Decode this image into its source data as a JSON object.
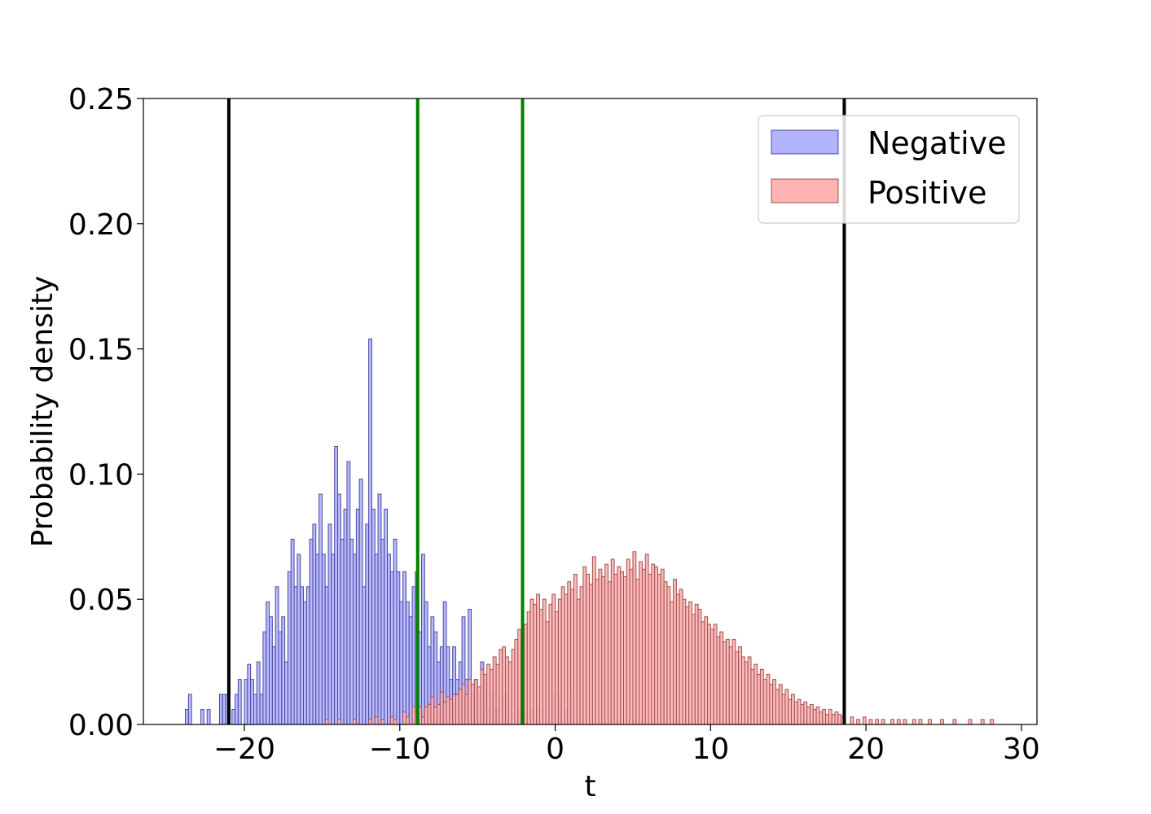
{
  "chart_data": {
    "type": "histogram",
    "xlabel": "t",
    "ylabel": "Probability density",
    "xlim": [
      -26.5,
      31
    ],
    "ylim": [
      0,
      0.25
    ],
    "xticks": [
      -20,
      -10,
      0,
      10,
      20,
      30
    ],
    "xtick_labels": [
      "−20",
      "−10",
      "0",
      "10",
      "20",
      "30"
    ],
    "yticks": [
      0,
      0.05,
      0.1,
      0.15,
      0.2,
      0.25
    ],
    "ytick_labels": [
      "0.00",
      "0.05",
      "0.10",
      "0.15",
      "0.20",
      "0.25"
    ],
    "bin_width": 0.2,
    "grid": false,
    "legend_position": "upper right",
    "series": [
      {
        "name": "Negative",
        "fill": "#b3b3ff",
        "edge": "#4a4aa0",
        "bins": [
          [
            -23.8,
            0.006
          ],
          [
            -23.6,
            0.012
          ],
          [
            -22.8,
            0.006
          ],
          [
            -22.4,
            0.006
          ],
          [
            -21.6,
            0.012
          ],
          [
            -21.4,
            0.012
          ],
          [
            -21.2,
            0.012
          ],
          [
            -20.8,
            0.006
          ],
          [
            -20.6,
            0.012
          ],
          [
            -20.4,
            0.018
          ],
          [
            -20.0,
            0.018
          ],
          [
            -19.8,
            0.024
          ],
          [
            -19.6,
            0.018
          ],
          [
            -19.4,
            0.012
          ],
          [
            -19.2,
            0.025
          ],
          [
            -19.0,
            0.012
          ],
          [
            -18.8,
            0.037
          ],
          [
            -18.6,
            0.049
          ],
          [
            -18.4,
            0.043
          ],
          [
            -18.2,
            0.031
          ],
          [
            -18.0,
            0.055
          ],
          [
            -17.8,
            0.037
          ],
          [
            -17.6,
            0.043
          ],
          [
            -17.4,
            0.025
          ],
          [
            -17.2,
            0.061
          ],
          [
            -17.0,
            0.074
          ],
          [
            -16.8,
            0.055
          ],
          [
            -16.6,
            0.068
          ],
          [
            -16.4,
            0.055
          ],
          [
            -16.2,
            0.049
          ],
          [
            -16.0,
            0.055
          ],
          [
            -15.8,
            0.074
          ],
          [
            -15.6,
            0.08
          ],
          [
            -15.4,
            0.068
          ],
          [
            -15.2,
            0.092
          ],
          [
            -15.0,
            0.068
          ],
          [
            -14.8,
            0.055
          ],
          [
            -14.6,
            0.08
          ],
          [
            -14.4,
            0.068
          ],
          [
            -14.2,
            0.111
          ],
          [
            -14.0,
            0.092
          ],
          [
            -13.8,
            0.074
          ],
          [
            -13.6,
            0.086
          ],
          [
            -13.4,
            0.105
          ],
          [
            -13.2,
            0.074
          ],
          [
            -13.0,
            0.068
          ],
          [
            -12.8,
            0.086
          ],
          [
            -12.6,
            0.098
          ],
          [
            -12.4,
            0.055
          ],
          [
            -12.2,
            0.08
          ],
          [
            -12.0,
            0.154
          ],
          [
            -11.8,
            0.086
          ],
          [
            -11.6,
            0.068
          ],
          [
            -11.4,
            0.092
          ],
          [
            -11.2,
            0.074
          ],
          [
            -11.0,
            0.086
          ],
          [
            -10.8,
            0.068
          ],
          [
            -10.6,
            0.061
          ],
          [
            -10.4,
            0.074
          ],
          [
            -10.2,
            0.061
          ],
          [
            -10.0,
            0.049
          ],
          [
            -9.8,
            0.061
          ],
          [
            -9.6,
            0.049
          ],
          [
            -9.4,
            0.043
          ],
          [
            -9.2,
            0.055
          ],
          [
            -9.0,
            0.061
          ],
          [
            -8.8,
            0.037
          ],
          [
            -8.6,
            0.068
          ],
          [
            -8.4,
            0.049
          ],
          [
            -8.2,
            0.031
          ],
          [
            -8.0,
            0.043
          ],
          [
            -7.8,
            0.037
          ],
          [
            -7.6,
            0.025
          ],
          [
            -7.4,
            0.031
          ],
          [
            -7.2,
            0.049
          ],
          [
            -7.0,
            0.031
          ],
          [
            -6.8,
            0.018
          ],
          [
            -6.6,
            0.031
          ],
          [
            -6.4,
            0.018
          ],
          [
            -6.2,
            0.025
          ],
          [
            -6.0,
            0.043
          ],
          [
            -5.8,
            0.018
          ],
          [
            -5.6,
            0.046
          ],
          [
            -5.4,
            0.012
          ],
          [
            -5.2,
            0.018
          ],
          [
            -5.0,
            0.012
          ],
          [
            -4.8,
            0.025
          ],
          [
            -4.6,
            0.018
          ],
          [
            -4.4,
            0.006
          ],
          [
            -4.2,
            0.012
          ],
          [
            -4.0,
            0.006
          ],
          [
            -3.8,
            0.006
          ],
          [
            -3.4,
            0.012
          ],
          [
            -3.2,
            0.012
          ],
          [
            -2.4,
            0.006
          ],
          [
            -2.2,
            0.012
          ],
          [
            -1.6,
            0.006
          ],
          [
            -1.2,
            0.006
          ],
          [
            -0.2,
            0.012
          ],
          [
            0.2,
            0.012
          ],
          [
            0.6,
            0.006
          ],
          [
            1.0,
            0.012
          ]
        ]
      },
      {
        "name": "Positive",
        "fill": "#ffb3b3",
        "edge": "#a05050",
        "bins": [
          [
            -14.8,
            0.002
          ],
          [
            -14.0,
            0.002
          ],
          [
            -13.0,
            0.002
          ],
          [
            -12.0,
            0.002
          ],
          [
            -11.6,
            0.003
          ],
          [
            -11.2,
            0.002
          ],
          [
            -10.6,
            0.003
          ],
          [
            -10.4,
            0.002
          ],
          [
            -9.8,
            0.005
          ],
          [
            -9.6,
            0.003
          ],
          [
            -9.2,
            0.007
          ],
          [
            -9.0,
            0.005
          ],
          [
            -8.8,
            0.007
          ],
          [
            -8.6,
            0.003
          ],
          [
            -8.4,
            0.007
          ],
          [
            -8.2,
            0.008
          ],
          [
            -8.0,
            0.011
          ],
          [
            -7.8,
            0.007
          ],
          [
            -7.6,
            0.008
          ],
          [
            -7.4,
            0.013
          ],
          [
            -7.2,
            0.009
          ],
          [
            -7.0,
            0.011
          ],
          [
            -6.8,
            0.01
          ],
          [
            -6.6,
            0.012
          ],
          [
            -6.4,
            0.012
          ],
          [
            -6.2,
            0.014
          ],
          [
            -6.0,
            0.016
          ],
          [
            -5.8,
            0.012
          ],
          [
            -5.6,
            0.018
          ],
          [
            -5.4,
            0.016
          ],
          [
            -5.2,
            0.018
          ],
          [
            -5.0,
            0.015
          ],
          [
            -4.8,
            0.022
          ],
          [
            -4.6,
            0.02
          ],
          [
            -4.4,
            0.024
          ],
          [
            -4.2,
            0.022
          ],
          [
            -4.0,
            0.027
          ],
          [
            -3.8,
            0.024
          ],
          [
            -3.6,
            0.03
          ],
          [
            -3.4,
            0.031
          ],
          [
            -3.2,
            0.027
          ],
          [
            -3.0,
            0.025
          ],
          [
            -2.8,
            0.03
          ],
          [
            -2.6,
            0.034
          ],
          [
            -2.4,
            0.038
          ],
          [
            -2.2,
            0.033
          ],
          [
            -2.0,
            0.04
          ],
          [
            -1.8,
            0.045
          ],
          [
            -1.6,
            0.05
          ],
          [
            -1.4,
            0.048
          ],
          [
            -1.2,
            0.052
          ],
          [
            -1.0,
            0.046
          ],
          [
            -0.8,
            0.05
          ],
          [
            -0.6,
            0.041
          ],
          [
            -0.4,
            0.048
          ],
          [
            -0.2,
            0.052
          ],
          [
            0.0,
            0.045
          ],
          [
            0.2,
            0.05
          ],
          [
            0.4,
            0.055
          ],
          [
            0.6,
            0.052
          ],
          [
            0.8,
            0.057
          ],
          [
            1.0,
            0.054
          ],
          [
            1.2,
            0.06
          ],
          [
            1.4,
            0.05
          ],
          [
            1.6,
            0.055
          ],
          [
            1.8,
            0.063
          ],
          [
            2.0,
            0.06
          ],
          [
            2.2,
            0.056
          ],
          [
            2.4,
            0.067
          ],
          [
            2.6,
            0.058
          ],
          [
            2.8,
            0.062
          ],
          [
            3.0,
            0.059
          ],
          [
            3.2,
            0.064
          ],
          [
            3.4,
            0.057
          ],
          [
            3.6,
            0.066
          ],
          [
            3.8,
            0.06
          ],
          [
            4.0,
            0.063
          ],
          [
            4.2,
            0.061
          ],
          [
            4.4,
            0.059
          ],
          [
            4.6,
            0.066
          ],
          [
            4.8,
            0.062
          ],
          [
            5.0,
            0.069
          ],
          [
            5.2,
            0.058
          ],
          [
            5.4,
            0.065
          ],
          [
            5.6,
            0.062
          ],
          [
            5.8,
            0.068
          ],
          [
            6.0,
            0.06
          ],
          [
            6.2,
            0.064
          ],
          [
            6.4,
            0.063
          ],
          [
            6.6,
            0.06
          ],
          [
            6.8,
            0.062
          ],
          [
            7.0,
            0.057
          ],
          [
            7.2,
            0.055
          ],
          [
            7.4,
            0.049
          ],
          [
            7.6,
            0.058
          ],
          [
            7.8,
            0.052
          ],
          [
            8.0,
            0.054
          ],
          [
            8.2,
            0.05
          ],
          [
            8.4,
            0.047
          ],
          [
            8.6,
            0.049
          ],
          [
            8.8,
            0.044
          ],
          [
            9.0,
            0.048
          ],
          [
            9.2,
            0.046
          ],
          [
            9.4,
            0.041
          ],
          [
            9.6,
            0.043
          ],
          [
            9.8,
            0.04
          ],
          [
            10.0,
            0.038
          ],
          [
            10.2,
            0.04
          ],
          [
            10.4,
            0.035
          ],
          [
            10.6,
            0.037
          ],
          [
            10.8,
            0.033
          ],
          [
            11.0,
            0.034
          ],
          [
            11.2,
            0.031
          ],
          [
            11.4,
            0.034
          ],
          [
            11.6,
            0.029
          ],
          [
            11.8,
            0.031
          ],
          [
            12.0,
            0.027
          ],
          [
            12.2,
            0.025
          ],
          [
            12.4,
            0.027
          ],
          [
            12.6,
            0.022
          ],
          [
            12.8,
            0.024
          ],
          [
            13.0,
            0.02
          ],
          [
            13.2,
            0.022
          ],
          [
            13.4,
            0.018
          ],
          [
            13.6,
            0.02
          ],
          [
            13.8,
            0.016
          ],
          [
            14.0,
            0.018
          ],
          [
            14.2,
            0.014
          ],
          [
            14.4,
            0.016
          ],
          [
            14.6,
            0.012
          ],
          [
            14.8,
            0.014
          ],
          [
            15.0,
            0.01
          ],
          [
            15.2,
            0.012
          ],
          [
            15.4,
            0.009
          ],
          [
            15.6,
            0.01
          ],
          [
            15.8,
            0.008
          ],
          [
            16.0,
            0.009
          ],
          [
            16.2,
            0.007
          ],
          [
            16.4,
            0.008
          ],
          [
            16.6,
            0.006
          ],
          [
            16.8,
            0.007
          ],
          [
            17.0,
            0.005
          ],
          [
            17.2,
            0.006
          ],
          [
            17.4,
            0.004
          ],
          [
            17.6,
            0.006
          ],
          [
            17.8,
            0.004
          ],
          [
            18.0,
            0.005
          ],
          [
            18.2,
            0.004
          ],
          [
            18.4,
            0.003
          ],
          [
            19.0,
            0.003
          ],
          [
            19.4,
            0.002
          ],
          [
            19.8,
            0.003
          ],
          [
            20.2,
            0.002
          ],
          [
            20.6,
            0.002
          ],
          [
            21.0,
            0.002
          ],
          [
            21.6,
            0.002
          ],
          [
            22.0,
            0.002
          ],
          [
            22.4,
            0.002
          ],
          [
            23.0,
            0.002
          ],
          [
            23.4,
            0.002
          ],
          [
            24.0,
            0.002
          ],
          [
            24.8,
            0.002
          ],
          [
            25.6,
            0.002
          ],
          [
            26.6,
            0.002
          ],
          [
            27.4,
            0.002
          ],
          [
            28.0,
            0.002
          ]
        ]
      }
    ],
    "vlines": [
      {
        "x": -21.0,
        "color": "#000000"
      },
      {
        "x": -8.85,
        "color": "#008000"
      },
      {
        "x": -2.1,
        "color": "#008000"
      },
      {
        "x": 18.6,
        "color": "#000000"
      }
    ]
  }
}
